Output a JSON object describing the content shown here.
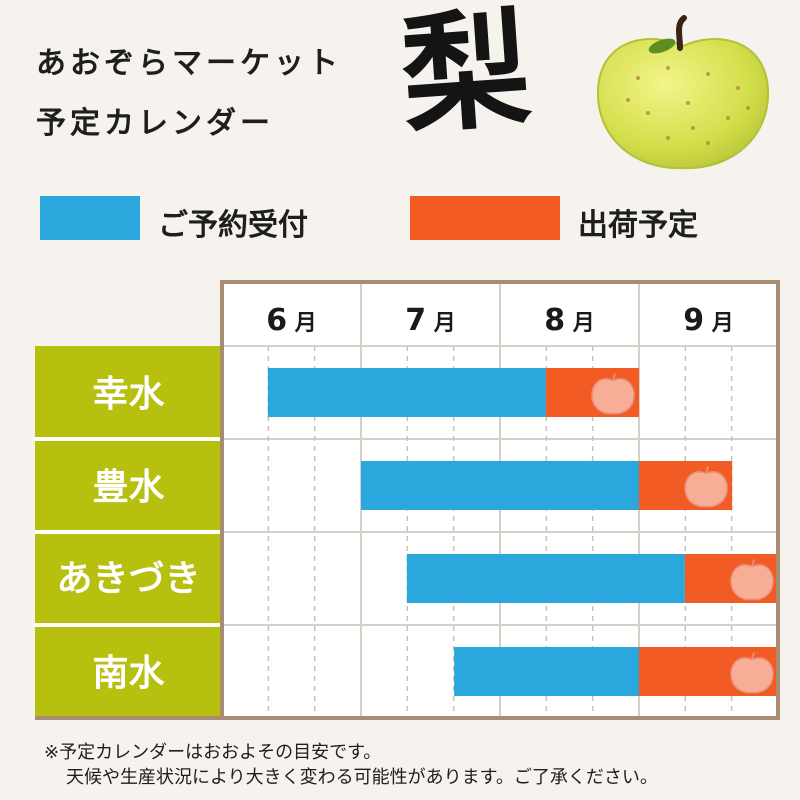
{
  "header": {
    "title_line1": "あおぞらマーケット",
    "title_line2": "予定カレンダー",
    "fruit_kanji": "梨",
    "illustration": "green-pear-icon"
  },
  "legend": {
    "booking_label": "ご予約受付",
    "shipping_label": "出荷予定"
  },
  "colors": {
    "booking": "#2aa8de",
    "shipping": "#f35b25",
    "variety_bg": "#b7bf0f",
    "grid_border": "#a98c74",
    "pear_badge": "#f7ad96"
  },
  "chart_data": {
    "type": "gantt",
    "months": [
      "6",
      "7",
      "8",
      "9"
    ],
    "month_unit": "月",
    "divisions_per_month": 3,
    "series": [
      {
        "name": "ご予約受付",
        "color": "#2aa8de"
      },
      {
        "name": "出荷予定",
        "color": "#f35b25"
      }
    ],
    "rows": [
      {
        "variety": "幸水",
        "booking": [
          0.33,
          2.33
        ],
        "shipping": [
          2.33,
          3.0
        ]
      },
      {
        "variety": "豊水",
        "booking": [
          1.0,
          3.0
        ],
        "shipping": [
          3.0,
          3.67
        ]
      },
      {
        "variety": "あきづき",
        "booking": [
          1.33,
          3.33
        ],
        "shipping": [
          3.33,
          4.0
        ]
      },
      {
        "variety": "南水",
        "booking": [
          1.67,
          3.0
        ],
        "shipping": [
          3.0,
          4.0
        ]
      }
    ]
  },
  "notes": {
    "line1": "※予定カレンダーはおおよその目安です。",
    "line2": "天候や生産状況により大きく変わる可能性があります。ご了承ください。"
  }
}
